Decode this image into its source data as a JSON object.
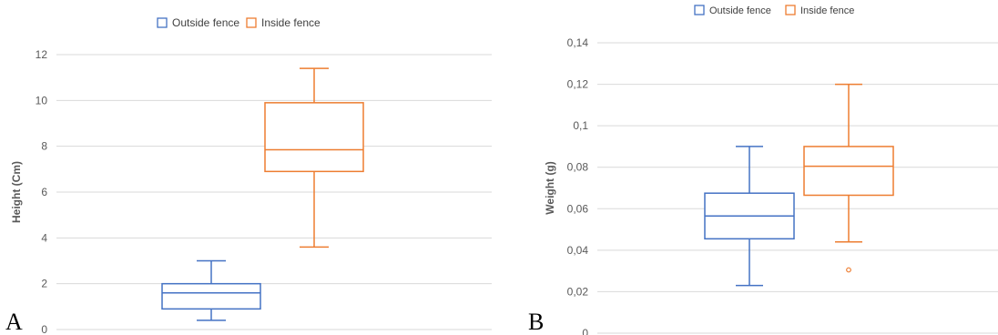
{
  "chart_data": [
    {
      "type": "box",
      "panel_label": "A",
      "ylabel": "Height (Cm)",
      "ylim": [
        0,
        12
      ],
      "y_ticks": [
        "0",
        "2",
        "4",
        "6",
        "8",
        "10",
        "12"
      ],
      "grid": true,
      "legend": "top-center",
      "series": [
        {
          "name": "Outside fence",
          "color": "#4472C4",
          "whisker_low": 0.4,
          "q1": 0.9,
          "median": 1.6,
          "q3": 2.0,
          "whisker_high": 3.0,
          "outliers": []
        },
        {
          "name": "Inside fence",
          "color": "#ED7D31",
          "whisker_low": 3.6,
          "q1": 6.9,
          "median": 7.85,
          "q3": 9.9,
          "whisker_high": 11.4,
          "outliers": []
        }
      ]
    },
    {
      "type": "box",
      "panel_label": "B",
      "ylabel": "Weight (g)",
      "ylim": [
        0,
        0.14
      ],
      "y_ticks": [
        "0",
        "0,02",
        "0,04",
        "0,06",
        "0,08",
        "0,1",
        "0,12",
        "0,14"
      ],
      "grid": true,
      "legend": "top-center",
      "series": [
        {
          "name": "Outside fence",
          "color": "#4472C4",
          "whisker_low": 0.023,
          "q1": 0.0455,
          "median": 0.0565,
          "q3": 0.0675,
          "whisker_high": 0.09,
          "outliers": []
        },
        {
          "name": "Inside fence",
          "color": "#ED7D31",
          "whisker_low": 0.044,
          "q1": 0.0665,
          "median": 0.0805,
          "q3": 0.09,
          "whisker_high": 0.12,
          "outliers": [
            0.0305
          ]
        }
      ]
    }
  ]
}
